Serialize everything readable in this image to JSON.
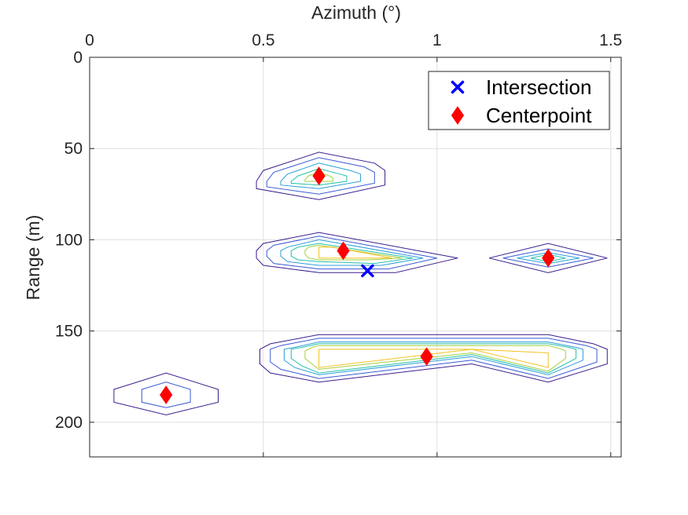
{
  "chart_data": {
    "type": "scatter",
    "title": "",
    "xlabel": "Azimuth (°)",
    "ylabel": "Range (m)",
    "xlim": [
      0,
      1.53
    ],
    "ylim": [
      0,
      219
    ],
    "x_axis_location": "top",
    "y_axis_direction": "reverse",
    "xticks": [
      0,
      0.5,
      1,
      1.5
    ],
    "xtick_labels": [
      "0",
      "0.5",
      "1",
      "1.5"
    ],
    "yticks": [
      0,
      50,
      100,
      150,
      200
    ],
    "ytick_labels": [
      "0",
      "50",
      "100",
      "150",
      "200"
    ],
    "grid": true,
    "legend": {
      "location": "top-right",
      "entries": [
        {
          "label": "Intersection",
          "marker": "x",
          "color": "#0000ff"
        },
        {
          "label": "Centerpoint",
          "marker": "diamond",
          "color": "#ff0000"
        }
      ]
    },
    "series": [
      {
        "name": "Intersection",
        "marker": "x",
        "color": "#0000ff",
        "points": [
          {
            "x": 0.8,
            "y": 117
          }
        ]
      },
      {
        "name": "Centerpoint",
        "marker": "diamond",
        "color": "#ff0000",
        "points": [
          {
            "x": 0.66,
            "y": 65
          },
          {
            "x": 0.73,
            "y": 106
          },
          {
            "x": 1.32,
            "y": 110
          },
          {
            "x": 0.97,
            "y": 164
          },
          {
            "x": 0.22,
            "y": 185
          }
        ]
      }
    ],
    "contour_colors": [
      "#3b1e8c",
      "#3a5ad6",
      "#2a9fd8",
      "#24c0a8",
      "#a6cf3c",
      "#f5c21f"
    ],
    "contours": [
      {
        "levels": [
          [
            [
              0.48,
              68
            ],
            [
              0.5,
              62
            ],
            [
              0.66,
              52
            ],
            [
              0.82,
              58
            ],
            [
              0.85,
              62
            ],
            [
              0.85,
              70
            ],
            [
              0.66,
              78
            ],
            [
              0.48,
              72
            ]
          ],
          [
            [
              0.51,
              68
            ],
            [
              0.53,
              63
            ],
            [
              0.66,
              55
            ],
            [
              0.79,
              60
            ],
            [
              0.82,
              63
            ],
            [
              0.82,
              69
            ],
            [
              0.66,
              75
            ],
            [
              0.51,
              71
            ]
          ],
          [
            [
              0.55,
              68
            ],
            [
              0.57,
              64
            ],
            [
              0.66,
              58
            ],
            [
              0.75,
              62
            ],
            [
              0.78,
              64
            ],
            [
              0.78,
              68
            ],
            [
              0.66,
              72
            ],
            [
              0.55,
              70
            ]
          ],
          [
            [
              0.58,
              68
            ],
            [
              0.6,
              65
            ],
            [
              0.66,
              61
            ],
            [
              0.72,
              64
            ],
            [
              0.74,
              65
            ],
            [
              0.74,
              68
            ],
            [
              0.66,
              70
            ],
            [
              0.58,
              69
            ]
          ],
          [
            [
              0.62,
              67
            ],
            [
              0.63,
              65
            ],
            [
              0.66,
              63
            ],
            [
              0.69,
              65
            ],
            [
              0.7,
              66
            ],
            [
              0.7,
              68
            ],
            [
              0.66,
              68
            ],
            [
              0.62,
              68
            ]
          ]
        ]
      },
      {
        "levels": [
          [
            [
              0.48,
              106
            ],
            [
              0.5,
              102
            ],
            [
              0.66,
              96
            ],
            [
              1.06,
              110
            ],
            [
              0.88,
              118
            ],
            [
              0.66,
              118
            ],
            [
              0.5,
              114
            ],
            [
              0.48,
              110
            ]
          ],
          [
            [
              0.51,
              106
            ],
            [
              0.53,
              103
            ],
            [
              0.66,
              98
            ],
            [
              1.0,
              110
            ],
            [
              0.86,
              116
            ],
            [
              0.66,
              116
            ],
            [
              0.53,
              113
            ],
            [
              0.51,
              109
            ]
          ],
          [
            [
              0.55,
              106
            ],
            [
              0.57,
              104
            ],
            [
              0.66,
              100
            ],
            [
              0.96,
              110
            ],
            [
              0.84,
              114
            ],
            [
              0.66,
              114
            ],
            [
              0.57,
              112
            ],
            [
              0.55,
              109
            ]
          ],
          [
            [
              0.58,
              106
            ],
            [
              0.6,
              104
            ],
            [
              0.66,
              102
            ],
            [
              0.93,
              110
            ],
            [
              0.82,
              113
            ],
            [
              0.66,
              112
            ],
            [
              0.6,
              111
            ],
            [
              0.58,
              109
            ]
          ],
          [
            [
              0.62,
              106
            ],
            [
              0.63,
              104
            ],
            [
              0.66,
              103
            ],
            [
              0.9,
              110
            ],
            [
              0.8,
              111
            ],
            [
              0.66,
              111
            ],
            [
              0.63,
              110
            ],
            [
              0.62,
              108
            ]
          ],
          [
            [
              0.66,
              104
            ],
            [
              0.7,
              104
            ],
            [
              0.87,
              110
            ],
            [
              0.66,
              110
            ]
          ]
        ]
      },
      {
        "levels": [
          [
            [
              1.15,
              110
            ],
            [
              1.32,
              102
            ],
            [
              1.49,
              110
            ],
            [
              1.32,
              118
            ]
          ],
          [
            [
              1.19,
              110
            ],
            [
              1.32,
              105
            ],
            [
              1.45,
              110
            ],
            [
              1.32,
              115
            ]
          ],
          [
            [
              1.23,
              110
            ],
            [
              1.32,
              107
            ],
            [
              1.41,
              110
            ],
            [
              1.32,
              113
            ]
          ],
          [
            [
              1.27,
              110
            ],
            [
              1.32,
              108
            ],
            [
              1.37,
              110
            ],
            [
              1.32,
              112
            ]
          ]
        ]
      },
      {
        "levels": [
          [
            [
              0.49,
              160
            ],
            [
              0.52,
              157
            ],
            [
              0.66,
              152
            ],
            [
              1.32,
              152
            ],
            [
              1.45,
              157
            ],
            [
              1.49,
              160
            ],
            [
              1.49,
              168
            ],
            [
              1.32,
              178
            ],
            [
              1.1,
              168
            ],
            [
              0.66,
              178
            ],
            [
              0.52,
              173
            ],
            [
              0.49,
              168
            ]
          ],
          [
            [
              0.52,
              160
            ],
            [
              0.55,
              158
            ],
            [
              0.66,
              154
            ],
            [
              1.32,
              154
            ],
            [
              1.43,
              158
            ],
            [
              1.46,
              160
            ],
            [
              1.46,
              167
            ],
            [
              1.32,
              176
            ],
            [
              1.1,
              166
            ],
            [
              0.66,
              176
            ],
            [
              0.55,
              171
            ],
            [
              0.52,
              167
            ]
          ],
          [
            [
              0.56,
              160
            ],
            [
              0.59,
              159
            ],
            [
              0.66,
              156
            ],
            [
              1.32,
              156
            ],
            [
              1.4,
              159
            ],
            [
              1.42,
              160
            ],
            [
              1.42,
              166
            ],
            [
              1.32,
              174
            ],
            [
              1.1,
              164
            ],
            [
              0.66,
              174
            ],
            [
              0.59,
              170
            ],
            [
              0.56,
              166
            ]
          ],
          [
            [
              0.58,
              160
            ],
            [
              0.61,
              159
            ],
            [
              0.66,
              157
            ],
            [
              1.32,
              157
            ],
            [
              1.38,
              159
            ],
            [
              1.4,
              160
            ],
            [
              1.4,
              165
            ],
            [
              1.32,
              173
            ],
            [
              1.1,
              163
            ],
            [
              0.66,
              173
            ],
            [
              0.61,
              169
            ],
            [
              0.58,
              165
            ]
          ],
          [
            [
              0.62,
              161
            ],
            [
              0.64,
              159
            ],
            [
              0.66,
              158
            ],
            [
              1.32,
              158
            ],
            [
              1.36,
              160
            ],
            [
              1.37,
              161
            ],
            [
              1.37,
              165
            ],
            [
              1.32,
              172
            ],
            [
              1.1,
              162
            ],
            [
              0.66,
              171
            ],
            [
              0.64,
              168
            ],
            [
              0.62,
              165
            ]
          ],
          [
            [
              0.66,
              160
            ],
            [
              1.1,
              160
            ],
            [
              1.32,
              162
            ],
            [
              1.32,
              170
            ],
            [
              1.1,
              160
            ],
            [
              0.66,
              170
            ]
          ]
        ]
      },
      {
        "levels": [
          [
            [
              0.07,
              182
            ],
            [
              0.22,
              173
            ],
            [
              0.37,
              182
            ],
            [
              0.37,
              189
            ],
            [
              0.22,
              196
            ],
            [
              0.07,
              189
            ]
          ],
          [
            [
              0.15,
              182
            ],
            [
              0.22,
              178
            ],
            [
              0.29,
              182
            ],
            [
              0.29,
              189
            ],
            [
              0.22,
              192
            ],
            [
              0.15,
              189
            ]
          ]
        ]
      }
    ]
  }
}
